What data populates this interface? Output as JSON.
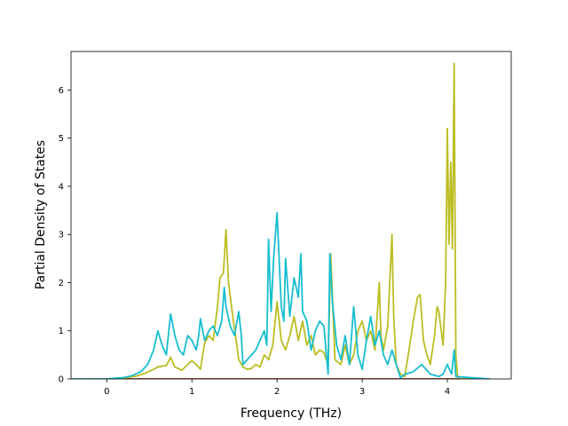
{
  "chart_data": {
    "type": "line",
    "xlabel": "Frequency (THz)",
    "ylabel": "Partial Density of States",
    "xlim": [
      -0.42,
      4.75
    ],
    "ylim": [
      0,
      6.8
    ],
    "xticks": [
      0,
      1,
      2,
      3,
      4
    ],
    "yticks": [
      0,
      1,
      2,
      3,
      4,
      5,
      6
    ],
    "grid": false,
    "colors": [
      "#1f77b4",
      "#ff7f0e",
      "#2ca02c",
      "#d62728",
      "#bcbd22",
      "#17becf"
    ],
    "series": [
      {
        "color": "#bcbd22",
        "x": [
          -0.42,
          0.0,
          0.2,
          0.35,
          0.45,
          0.55,
          0.6,
          0.7,
          0.75,
          0.8,
          0.88,
          0.95,
          1.0,
          1.05,
          1.1,
          1.15,
          1.2,
          1.25,
          1.3,
          1.33,
          1.37,
          1.4,
          1.43,
          1.48,
          1.52,
          1.55,
          1.6,
          1.65,
          1.7,
          1.75,
          1.8,
          1.85,
          1.9,
          1.95,
          2.0,
          2.05,
          2.1,
          2.15,
          2.2,
          2.25,
          2.3,
          2.35,
          2.4,
          2.45,
          2.5,
          2.55,
          2.6,
          2.63,
          2.68,
          2.75,
          2.8,
          2.85,
          2.9,
          2.95,
          3.0,
          3.05,
          3.1,
          3.15,
          3.2,
          3.22,
          3.25,
          3.3,
          3.35,
          3.37,
          3.4,
          3.45,
          3.5,
          3.55,
          3.6,
          3.65,
          3.68,
          3.72,
          3.76,
          3.8,
          3.85,
          3.88,
          3.9,
          3.95,
          3.98,
          4.0,
          4.02,
          4.04,
          4.06,
          4.08,
          4.1,
          4.12,
          4.15,
          4.5
        ],
        "values": [
          0,
          0,
          0.02,
          0.06,
          0.12,
          0.2,
          0.25,
          0.28,
          0.45,
          0.25,
          0.18,
          0.3,
          0.38,
          0.3,
          0.2,
          0.75,
          0.9,
          0.8,
          1.5,
          2.1,
          2.2,
          3.1,
          2.0,
          1.3,
          0.8,
          0.4,
          0.25,
          0.2,
          0.22,
          0.3,
          0.25,
          0.5,
          0.4,
          0.7,
          1.6,
          0.8,
          0.6,
          0.9,
          1.3,
          0.8,
          1.2,
          0.7,
          0.9,
          0.5,
          0.6,
          0.55,
          0.3,
          2.6,
          0.4,
          0.3,
          0.7,
          0.3,
          0.5,
          1.0,
          1.2,
          0.8,
          1.0,
          0.6,
          2.0,
          0.9,
          0.6,
          1.1,
          3.0,
          1.3,
          0.3,
          0.1,
          0.05,
          0.6,
          1.2,
          1.7,
          1.75,
          0.8,
          0.5,
          0.3,
          0.9,
          1.5,
          1.4,
          0.7,
          2.0,
          5.2,
          2.8,
          4.5,
          2.7,
          6.55,
          0.5,
          0.05,
          0,
          0
        ]
      },
      {
        "color": "#17becf",
        "x": [
          -0.42,
          0.0,
          0.2,
          0.3,
          0.4,
          0.48,
          0.55,
          0.6,
          0.65,
          0.7,
          0.75,
          0.8,
          0.85,
          0.9,
          0.95,
          1.0,
          1.05,
          1.08,
          1.1,
          1.15,
          1.2,
          1.25,
          1.3,
          1.35,
          1.38,
          1.4,
          1.45,
          1.5,
          1.55,
          1.58,
          1.6,
          1.65,
          1.7,
          1.75,
          1.8,
          1.85,
          1.88,
          1.9,
          1.93,
          1.96,
          2.0,
          2.05,
          2.08,
          2.1,
          2.15,
          2.2,
          2.25,
          2.28,
          2.3,
          2.35,
          2.4,
          2.45,
          2.5,
          2.55,
          2.6,
          2.62,
          2.65,
          2.7,
          2.75,
          2.8,
          2.85,
          2.9,
          2.95,
          3.0,
          3.05,
          3.1,
          3.15,
          3.2,
          3.25,
          3.3,
          3.35,
          3.4,
          3.45,
          3.5,
          3.6,
          3.7,
          3.8,
          3.9,
          3.95,
          4.0,
          4.05,
          4.08,
          4.1,
          4.5
        ],
        "values": [
          0,
          0,
          0.03,
          0.07,
          0.15,
          0.3,
          0.6,
          1.0,
          0.7,
          0.5,
          1.35,
          0.9,
          0.6,
          0.5,
          0.9,
          0.8,
          0.6,
          0.9,
          1.25,
          0.8,
          1.0,
          1.1,
          0.9,
          1.2,
          1.9,
          1.5,
          1.1,
          0.9,
          1.4,
          0.9,
          0.3,
          0.4,
          0.5,
          0.6,
          0.8,
          1.0,
          0.7,
          2.9,
          1.4,
          2.5,
          3.45,
          1.5,
          1.2,
          2.5,
          1.3,
          2.1,
          1.7,
          2.6,
          1.4,
          1.2,
          0.6,
          1.0,
          1.2,
          1.1,
          0.1,
          2.6,
          1.6,
          0.7,
          0.4,
          0.9,
          0.3,
          1.5,
          0.5,
          0.2,
          0.8,
          1.3,
          0.7,
          1.0,
          0.5,
          0.3,
          0.6,
          0.3,
          0.02,
          0.1,
          0.15,
          0.3,
          0.1,
          0.05,
          0.1,
          0.3,
          0.1,
          0.6,
          0.05,
          0
        ]
      }
    ]
  }
}
